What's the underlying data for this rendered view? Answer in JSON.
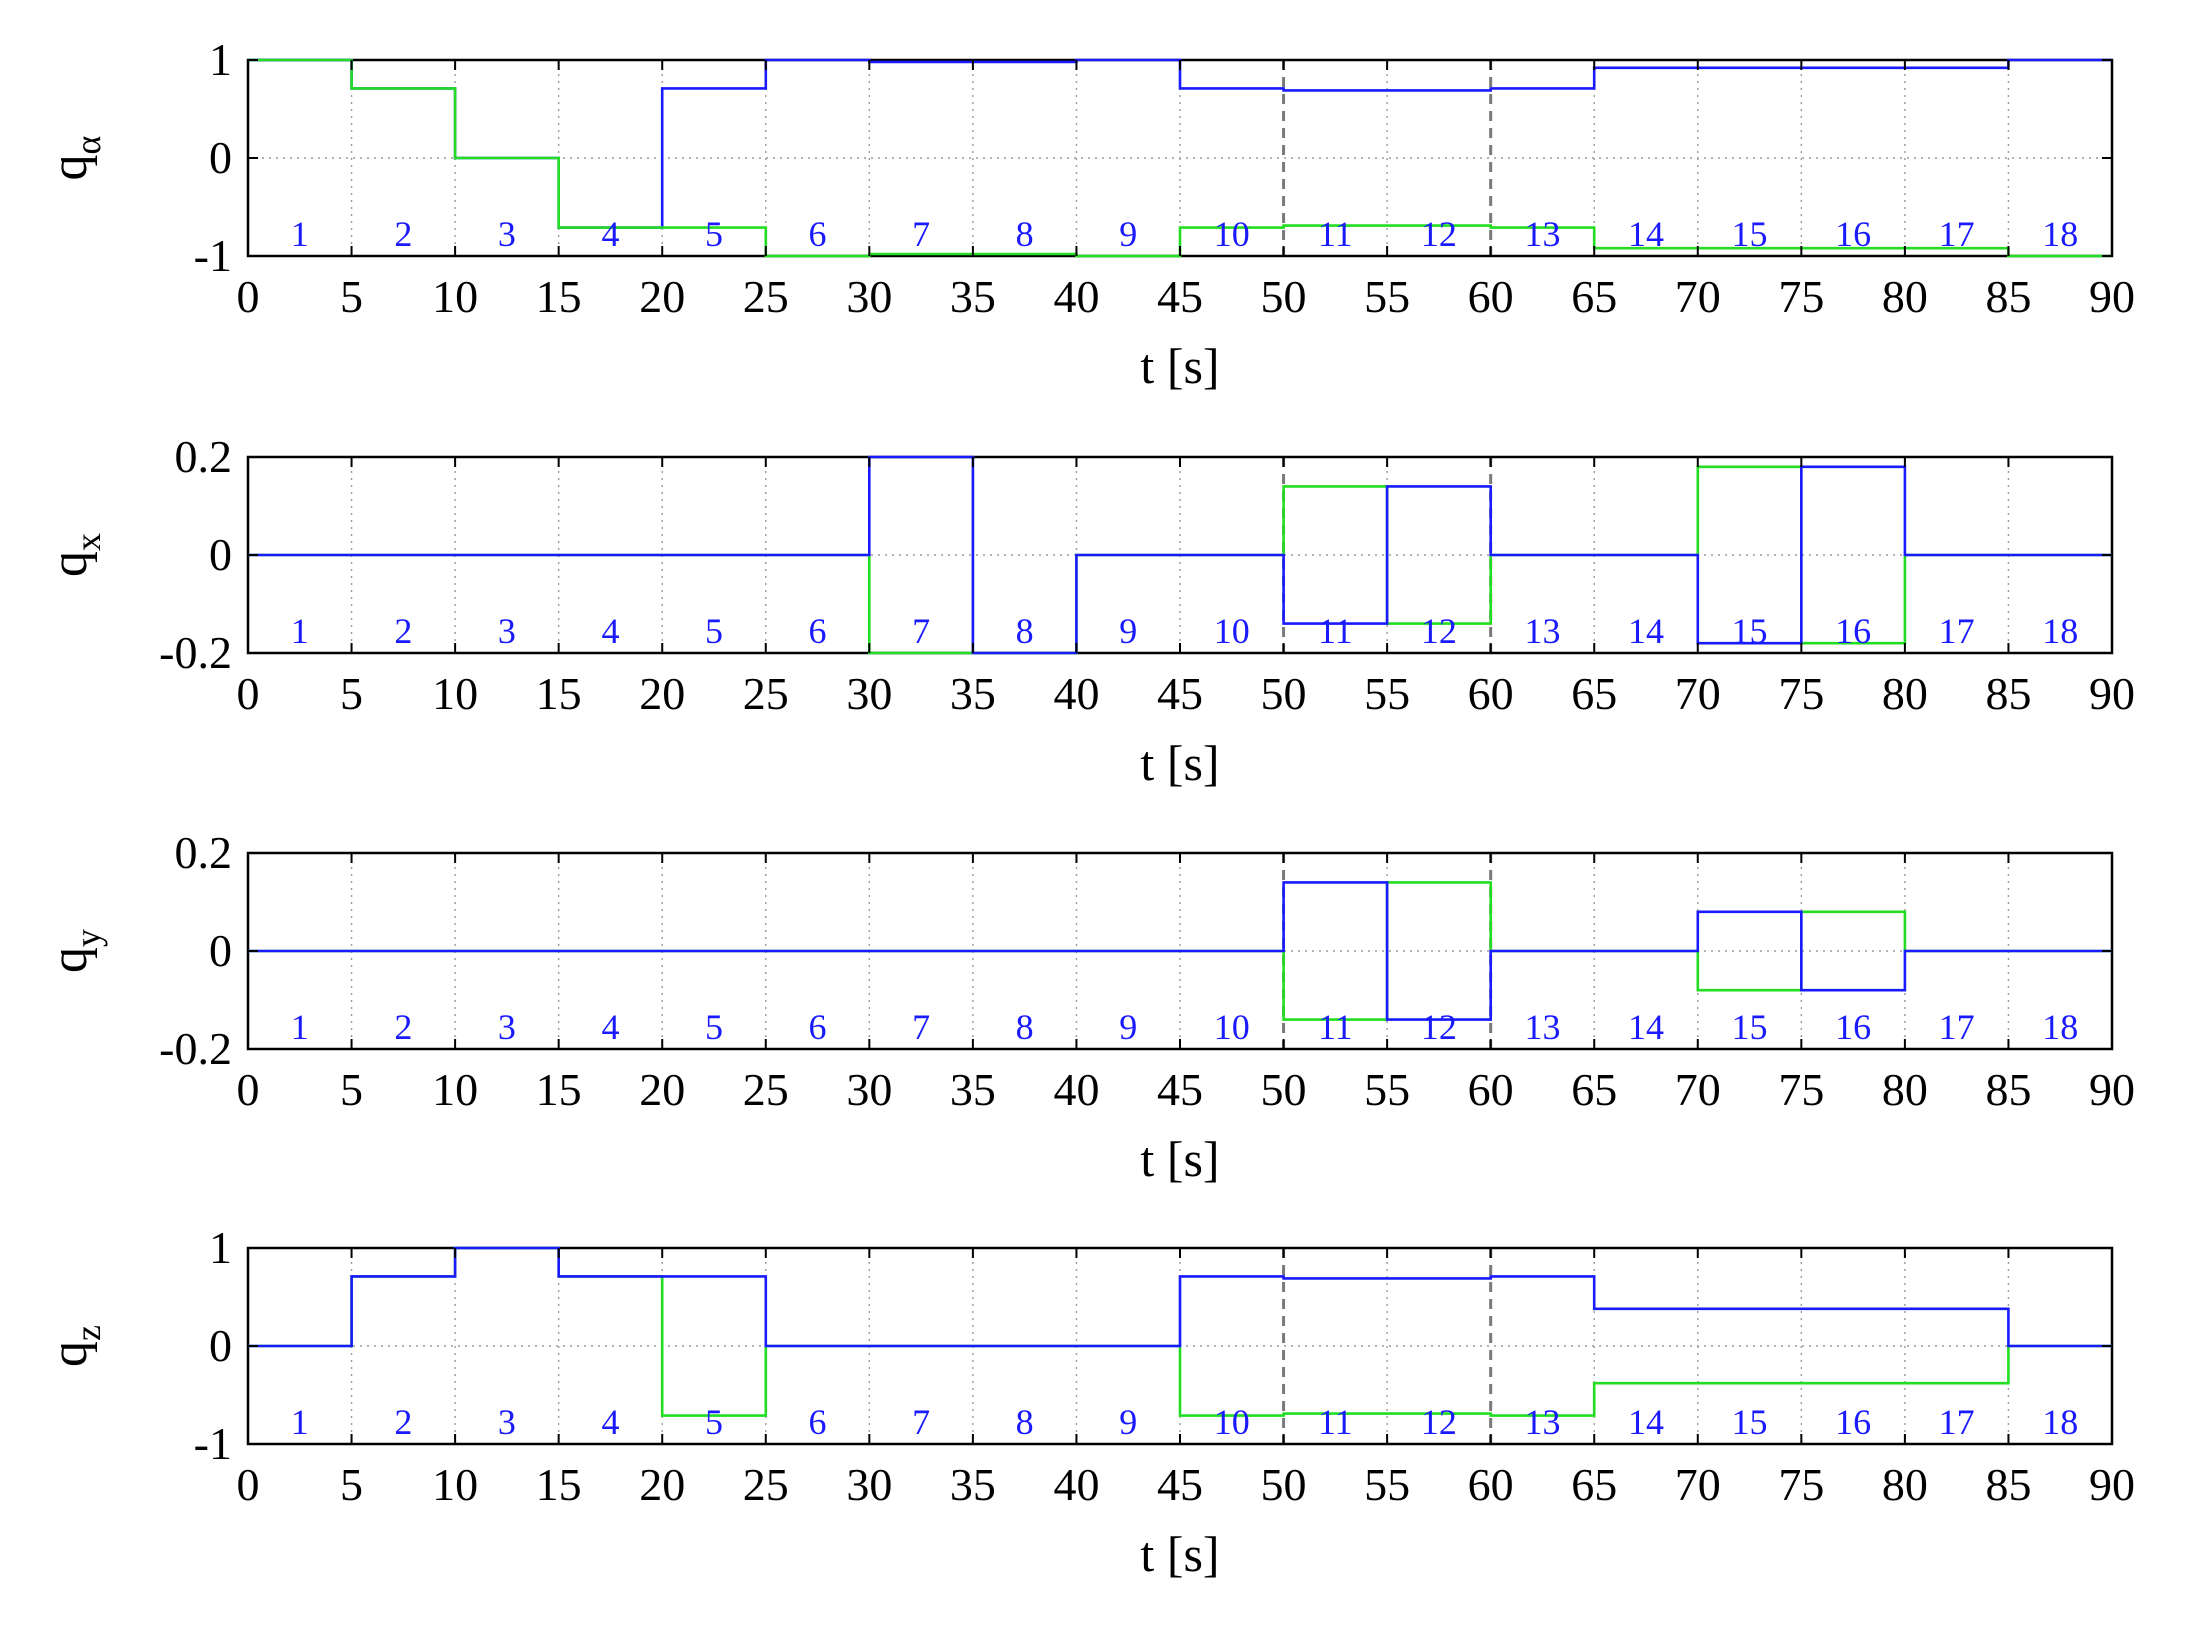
{
  "chart_data": [
    {
      "type": "line",
      "ylabel": "q",
      "ylabel_sub": "α",
      "xlabel": "t [s]",
      "xlim": [
        0,
        90
      ],
      "ylim": [
        -1,
        1
      ],
      "x_ticks": [
        "0",
        "5",
        "10",
        "15",
        "20",
        "25",
        "30",
        "35",
        "40",
        "45",
        "50",
        "55",
        "60",
        "65",
        "70",
        "75",
        "80",
        "85",
        "90"
      ],
      "y_ticks": [
        {
          "value": 1,
          "label": "1"
        },
        {
          "value": 0,
          "label": "0"
        },
        {
          "value": -1,
          "label": "-1"
        }
      ],
      "grid": true,
      "step_edges": [
        0,
        5,
        10,
        15,
        20,
        25,
        30,
        35,
        40,
        45,
        50,
        55,
        60,
        65,
        70,
        75,
        80,
        85,
        90
      ],
      "segment_labels": [
        "1",
        "2",
        "3",
        "4",
        "5",
        "6",
        "7",
        "8",
        "9",
        "10",
        "11",
        "12",
        "13",
        "14",
        "15",
        "16",
        "17",
        "18"
      ],
      "series": [
        {
          "color": "#1a1aff",
          "values": [
            1,
            0.71,
            0,
            -0.71,
            0.71,
            1,
            0.98,
            0.98,
            1,
            0.71,
            0.69,
            0.69,
            0.71,
            0.92,
            0.92,
            0.92,
            0.92,
            1
          ]
        },
        {
          "color": "#22dd22",
          "values": [
            1,
            0.71,
            0,
            -0.71,
            -0.71,
            -1,
            -0.98,
            -0.98,
            -1,
            -0.71,
            -0.69,
            -0.69,
            -0.71,
            -0.92,
            -0.92,
            -0.92,
            -0.92,
            -1
          ]
        }
      ]
    },
    {
      "type": "line",
      "ylabel": "q",
      "ylabel_sub": "x",
      "xlabel": "t [s]",
      "xlim": [
        0,
        90
      ],
      "ylim": [
        -0.2,
        0.2
      ],
      "x_ticks": [
        "0",
        "5",
        "10",
        "15",
        "20",
        "25",
        "30",
        "35",
        "40",
        "45",
        "50",
        "55",
        "60",
        "65",
        "70",
        "75",
        "80",
        "85",
        "90"
      ],
      "y_ticks": [
        {
          "value": 0.2,
          "label": "0.2"
        },
        {
          "value": 0,
          "label": "0"
        },
        {
          "value": -0.2,
          "label": "-0.2"
        }
      ],
      "grid": true,
      "step_edges": [
        0,
        5,
        10,
        15,
        20,
        25,
        30,
        35,
        40,
        45,
        50,
        55,
        60,
        65,
        70,
        75,
        80,
        85,
        90
      ],
      "segment_labels": [
        "1",
        "2",
        "3",
        "4",
        "5",
        "6",
        "7",
        "8",
        "9",
        "10",
        "11",
        "12",
        "13",
        "14",
        "15",
        "16",
        "17",
        "18"
      ],
      "series": [
        {
          "color": "#22dd22",
          "values": [
            0,
            0,
            0,
            0,
            0,
            0,
            -0.2,
            -0.2,
            0,
            0,
            0.14,
            -0.14,
            0,
            0,
            0.18,
            -0.18,
            0,
            0
          ]
        },
        {
          "color": "#1a1aff",
          "values": [
            0,
            0,
            0,
            0,
            0,
            0,
            0.2,
            -0.2,
            0,
            0,
            -0.14,
            0.14,
            0,
            0,
            -0.18,
            0.18,
            0,
            0
          ]
        }
      ]
    },
    {
      "type": "line",
      "ylabel": "q",
      "ylabel_sub": "y",
      "xlabel": "t [s]",
      "xlim": [
        0,
        90
      ],
      "ylim": [
        -0.2,
        0.2
      ],
      "x_ticks": [
        "0",
        "5",
        "10",
        "15",
        "20",
        "25",
        "30",
        "35",
        "40",
        "45",
        "50",
        "55",
        "60",
        "65",
        "70",
        "75",
        "80",
        "85",
        "90"
      ],
      "y_ticks": [
        {
          "value": 0.2,
          "label": "0.2"
        },
        {
          "value": 0,
          "label": "0"
        },
        {
          "value": -0.2,
          "label": "-0.2"
        }
      ],
      "grid": true,
      "step_edges": [
        0,
        5,
        10,
        15,
        20,
        25,
        30,
        35,
        40,
        45,
        50,
        55,
        60,
        65,
        70,
        75,
        80,
        85,
        90
      ],
      "segment_labels": [
        "1",
        "2",
        "3",
        "4",
        "5",
        "6",
        "7",
        "8",
        "9",
        "10",
        "11",
        "12",
        "13",
        "14",
        "15",
        "16",
        "17",
        "18"
      ],
      "series": [
        {
          "color": "#22dd22",
          "values": [
            0,
            0,
            0,
            0,
            0,
            0,
            0,
            0,
            0,
            0,
            -0.14,
            0.14,
            0,
            0,
            -0.08,
            0.08,
            0,
            0
          ]
        },
        {
          "color": "#1a1aff",
          "values": [
            0,
            0,
            0,
            0,
            0,
            0,
            0,
            0,
            0,
            0,
            0.14,
            -0.14,
            0,
            0,
            0.08,
            -0.08,
            0,
            0
          ]
        }
      ]
    },
    {
      "type": "line",
      "ylabel": "q",
      "ylabel_sub": "z",
      "xlabel": "t [s]",
      "xlim": [
        0,
        90
      ],
      "ylim": [
        -1,
        1
      ],
      "x_ticks": [
        "0",
        "5",
        "10",
        "15",
        "20",
        "25",
        "30",
        "35",
        "40",
        "45",
        "50",
        "55",
        "60",
        "65",
        "70",
        "75",
        "80",
        "85",
        "90"
      ],
      "y_ticks": [
        {
          "value": 1,
          "label": "1"
        },
        {
          "value": 0,
          "label": "0"
        },
        {
          "value": -1,
          "label": "-1"
        }
      ],
      "grid": true,
      "step_edges": [
        0,
        5,
        10,
        15,
        20,
        25,
        30,
        35,
        40,
        45,
        50,
        55,
        60,
        65,
        70,
        75,
        80,
        85,
        90
      ],
      "segment_labels": [
        "1",
        "2",
        "3",
        "4",
        "5",
        "6",
        "7",
        "8",
        "9",
        "10",
        "11",
        "12",
        "13",
        "14",
        "15",
        "16",
        "17",
        "18"
      ],
      "series": [
        {
          "color": "#22dd22",
          "values": [
            0,
            0.71,
            1,
            0.71,
            -0.71,
            0,
            0,
            0,
            0,
            -0.71,
            -0.69,
            -0.69,
            -0.71,
            -0.38,
            -0.38,
            -0.38,
            -0.38,
            0
          ]
        },
        {
          "color": "#1a1aff",
          "values": [
            0,
            0.71,
            1,
            0.71,
            0.71,
            0,
            0,
            0,
            0,
            0.71,
            0.69,
            0.69,
            0.71,
            0.38,
            0.38,
            0.38,
            0.38,
            0
          ]
        }
      ]
    }
  ]
}
